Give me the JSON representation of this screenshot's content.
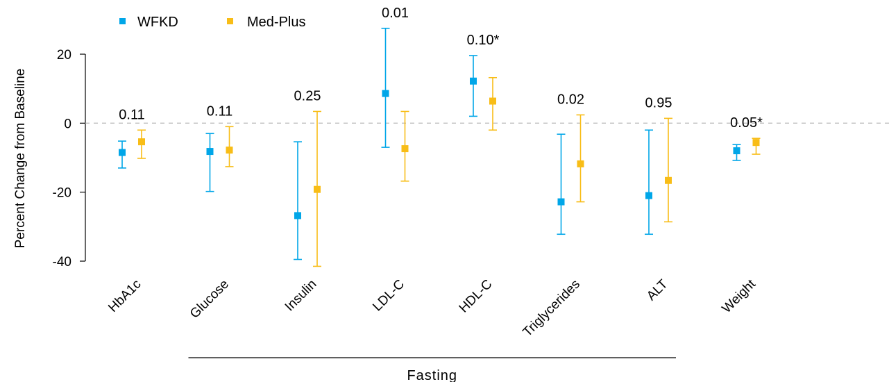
{
  "chart_data": {
    "type": "scatter",
    "subtype": "dot-and-whisker",
    "title": "",
    "ylabel": "Percent Change from Baseline",
    "ylim": [
      -40,
      20
    ],
    "yticks": [
      20,
      0,
      -20,
      -40
    ],
    "ytick_labels": [
      "20",
      "0",
      "-20",
      "-40"
    ],
    "reference_line": {
      "y": 0,
      "style": "dashed"
    },
    "categories": [
      "HbA1c",
      "Glucose",
      "Insulin",
      "LDL-C",
      "HDL-C",
      "Triglycerides",
      "ALT",
      "Weight"
    ],
    "p_values": [
      "0.11",
      "0.11",
      "0.25",
      "0.01",
      "0.10*",
      "0.02",
      "0.95",
      "0.05*"
    ],
    "series": [
      {
        "name": "WFKD",
        "color": "#00a6e8",
        "values": [
          -8.5,
          -8.2,
          -26.8,
          8.6,
          12.2,
          -22.8,
          -21.0,
          -8.0
        ],
        "lower": [
          -13.0,
          -19.8,
          -39.5,
          -7.0,
          2.0,
          -32.2,
          -32.2,
          -10.8
        ],
        "upper": [
          -5.2,
          -3.0,
          -5.4,
          27.5,
          19.6,
          -3.2,
          -2.0,
          -6.2
        ]
      },
      {
        "name": "Med-Plus",
        "color": "#f8bd17",
        "values": [
          -5.4,
          -7.8,
          -19.2,
          -7.4,
          6.4,
          -11.8,
          -16.6,
          -5.6
        ],
        "lower": [
          -10.2,
          -12.6,
          -41.5,
          -16.8,
          -2.0,
          -22.8,
          -28.6,
          -9.0
        ],
        "upper": [
          -2.0,
          -1.0,
          3.4,
          3.4,
          13.2,
          2.4,
          1.4,
          -4.4
        ]
      }
    ],
    "group_annotation": {
      "label": "Fasting",
      "from_category": "Glucose",
      "to_category": "ALT"
    },
    "legend_position": "top-left",
    "grid": false
  }
}
